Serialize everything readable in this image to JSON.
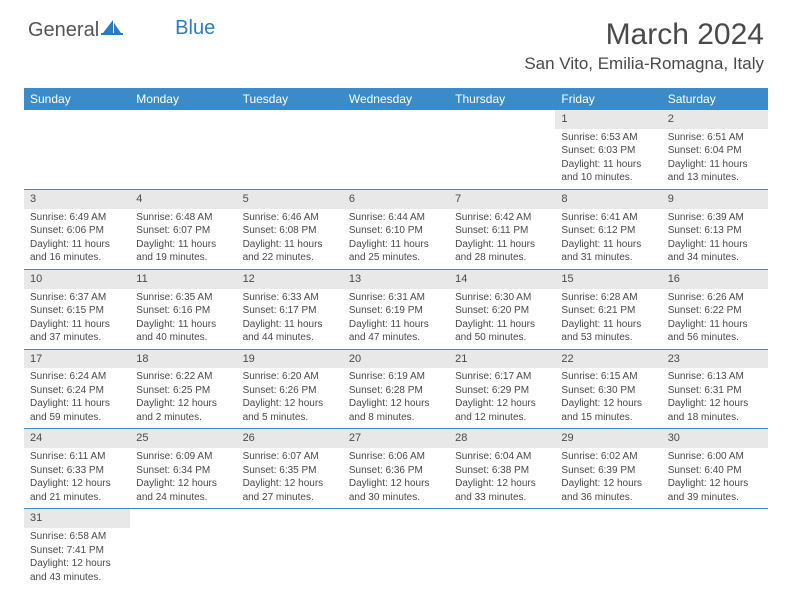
{
  "logo": {
    "part1": "General",
    "part2": "Blue"
  },
  "title": "March 2024",
  "location": "San Vito, Emilia-Romagna, Italy",
  "colors": {
    "header_bg": "#3b8bc9",
    "header_text": "#ffffff",
    "daynum_bg": "#e8e8e8",
    "border": "#3b8bc9",
    "text": "#4a4a4a",
    "logo_blue": "#2d7bc0"
  },
  "weekdays": [
    "Sunday",
    "Monday",
    "Tuesday",
    "Wednesday",
    "Thursday",
    "Friday",
    "Saturday"
  ],
  "weeks": [
    [
      null,
      null,
      null,
      null,
      null,
      {
        "n": "1",
        "sunrise": "Sunrise: 6:53 AM",
        "sunset": "Sunset: 6:03 PM",
        "daylight": "Daylight: 11 hours and 10 minutes."
      },
      {
        "n": "2",
        "sunrise": "Sunrise: 6:51 AM",
        "sunset": "Sunset: 6:04 PM",
        "daylight": "Daylight: 11 hours and 13 minutes."
      }
    ],
    [
      {
        "n": "3",
        "sunrise": "Sunrise: 6:49 AM",
        "sunset": "Sunset: 6:06 PM",
        "daylight": "Daylight: 11 hours and 16 minutes."
      },
      {
        "n": "4",
        "sunrise": "Sunrise: 6:48 AM",
        "sunset": "Sunset: 6:07 PM",
        "daylight": "Daylight: 11 hours and 19 minutes."
      },
      {
        "n": "5",
        "sunrise": "Sunrise: 6:46 AM",
        "sunset": "Sunset: 6:08 PM",
        "daylight": "Daylight: 11 hours and 22 minutes."
      },
      {
        "n": "6",
        "sunrise": "Sunrise: 6:44 AM",
        "sunset": "Sunset: 6:10 PM",
        "daylight": "Daylight: 11 hours and 25 minutes."
      },
      {
        "n": "7",
        "sunrise": "Sunrise: 6:42 AM",
        "sunset": "Sunset: 6:11 PM",
        "daylight": "Daylight: 11 hours and 28 minutes."
      },
      {
        "n": "8",
        "sunrise": "Sunrise: 6:41 AM",
        "sunset": "Sunset: 6:12 PM",
        "daylight": "Daylight: 11 hours and 31 minutes."
      },
      {
        "n": "9",
        "sunrise": "Sunrise: 6:39 AM",
        "sunset": "Sunset: 6:13 PM",
        "daylight": "Daylight: 11 hours and 34 minutes."
      }
    ],
    [
      {
        "n": "10",
        "sunrise": "Sunrise: 6:37 AM",
        "sunset": "Sunset: 6:15 PM",
        "daylight": "Daylight: 11 hours and 37 minutes."
      },
      {
        "n": "11",
        "sunrise": "Sunrise: 6:35 AM",
        "sunset": "Sunset: 6:16 PM",
        "daylight": "Daylight: 11 hours and 40 minutes."
      },
      {
        "n": "12",
        "sunrise": "Sunrise: 6:33 AM",
        "sunset": "Sunset: 6:17 PM",
        "daylight": "Daylight: 11 hours and 44 minutes."
      },
      {
        "n": "13",
        "sunrise": "Sunrise: 6:31 AM",
        "sunset": "Sunset: 6:19 PM",
        "daylight": "Daylight: 11 hours and 47 minutes."
      },
      {
        "n": "14",
        "sunrise": "Sunrise: 6:30 AM",
        "sunset": "Sunset: 6:20 PM",
        "daylight": "Daylight: 11 hours and 50 minutes."
      },
      {
        "n": "15",
        "sunrise": "Sunrise: 6:28 AM",
        "sunset": "Sunset: 6:21 PM",
        "daylight": "Daylight: 11 hours and 53 minutes."
      },
      {
        "n": "16",
        "sunrise": "Sunrise: 6:26 AM",
        "sunset": "Sunset: 6:22 PM",
        "daylight": "Daylight: 11 hours and 56 minutes."
      }
    ],
    [
      {
        "n": "17",
        "sunrise": "Sunrise: 6:24 AM",
        "sunset": "Sunset: 6:24 PM",
        "daylight": "Daylight: 11 hours and 59 minutes."
      },
      {
        "n": "18",
        "sunrise": "Sunrise: 6:22 AM",
        "sunset": "Sunset: 6:25 PM",
        "daylight": "Daylight: 12 hours and 2 minutes."
      },
      {
        "n": "19",
        "sunrise": "Sunrise: 6:20 AM",
        "sunset": "Sunset: 6:26 PM",
        "daylight": "Daylight: 12 hours and 5 minutes."
      },
      {
        "n": "20",
        "sunrise": "Sunrise: 6:19 AM",
        "sunset": "Sunset: 6:28 PM",
        "daylight": "Daylight: 12 hours and 8 minutes."
      },
      {
        "n": "21",
        "sunrise": "Sunrise: 6:17 AM",
        "sunset": "Sunset: 6:29 PM",
        "daylight": "Daylight: 12 hours and 12 minutes."
      },
      {
        "n": "22",
        "sunrise": "Sunrise: 6:15 AM",
        "sunset": "Sunset: 6:30 PM",
        "daylight": "Daylight: 12 hours and 15 minutes."
      },
      {
        "n": "23",
        "sunrise": "Sunrise: 6:13 AM",
        "sunset": "Sunset: 6:31 PM",
        "daylight": "Daylight: 12 hours and 18 minutes."
      }
    ],
    [
      {
        "n": "24",
        "sunrise": "Sunrise: 6:11 AM",
        "sunset": "Sunset: 6:33 PM",
        "daylight": "Daylight: 12 hours and 21 minutes."
      },
      {
        "n": "25",
        "sunrise": "Sunrise: 6:09 AM",
        "sunset": "Sunset: 6:34 PM",
        "daylight": "Daylight: 12 hours and 24 minutes."
      },
      {
        "n": "26",
        "sunrise": "Sunrise: 6:07 AM",
        "sunset": "Sunset: 6:35 PM",
        "daylight": "Daylight: 12 hours and 27 minutes."
      },
      {
        "n": "27",
        "sunrise": "Sunrise: 6:06 AM",
        "sunset": "Sunset: 6:36 PM",
        "daylight": "Daylight: 12 hours and 30 minutes."
      },
      {
        "n": "28",
        "sunrise": "Sunrise: 6:04 AM",
        "sunset": "Sunset: 6:38 PM",
        "daylight": "Daylight: 12 hours and 33 minutes."
      },
      {
        "n": "29",
        "sunrise": "Sunrise: 6:02 AM",
        "sunset": "Sunset: 6:39 PM",
        "daylight": "Daylight: 12 hours and 36 minutes."
      },
      {
        "n": "30",
        "sunrise": "Sunrise: 6:00 AM",
        "sunset": "Sunset: 6:40 PM",
        "daylight": "Daylight: 12 hours and 39 minutes."
      }
    ],
    [
      {
        "n": "31",
        "sunrise": "Sunrise: 6:58 AM",
        "sunset": "Sunset: 7:41 PM",
        "daylight": "Daylight: 12 hours and 43 minutes."
      },
      null,
      null,
      null,
      null,
      null,
      null
    ]
  ]
}
